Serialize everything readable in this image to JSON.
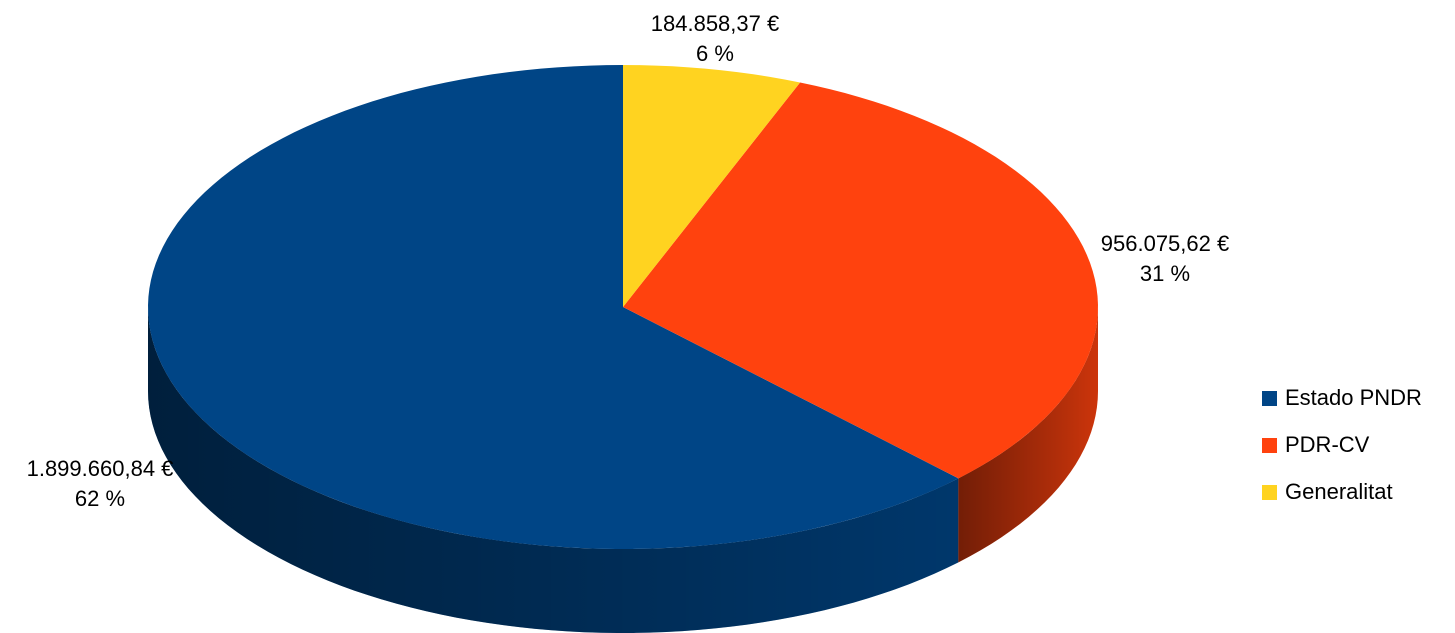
{
  "chart_data": {
    "type": "pie",
    "categories": [
      "Estado PNDR",
      "PDR-CV",
      "Generalitat"
    ],
    "values": [
      1899660.84,
      956075.62,
      184858.37
    ],
    "value_labels": [
      "1.899.660,84 €",
      "956.075,62 €",
      "184.858,37 €"
    ],
    "percentages": [
      62,
      31,
      6
    ],
    "percentage_labels": [
      "62 %",
      "31 %",
      "6 %"
    ],
    "colors": [
      "#004586",
      "#ff420e",
      "#ffd320"
    ],
    "legend": "right"
  }
}
